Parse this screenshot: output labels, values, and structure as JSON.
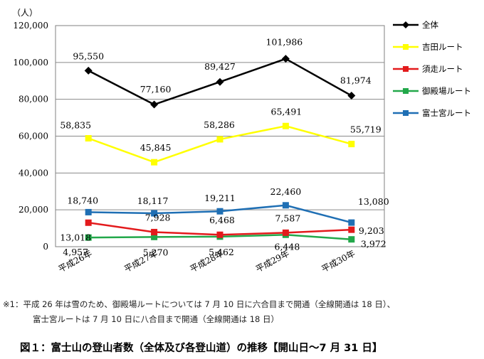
{
  "chart_data": {
    "type": "line",
    "unit_label": "（人）",
    "categories": [
      "平成26年",
      "平成27年",
      "平成28年",
      "平成29年",
      "平成30年"
    ],
    "ylim": [
      0,
      120000
    ],
    "yticks": [
      "0",
      "20,000",
      "40,000",
      "60,000",
      "80,000",
      "100,000",
      "120,000"
    ],
    "grid": true,
    "legend_position": "right",
    "series": [
      {
        "name": "全体",
        "color": "#000000",
        "marker": "diamond",
        "values": [
          95550,
          77160,
          89427,
          101986,
          81974
        ],
        "labels": [
          "95,550",
          "77,160",
          "89,427",
          "101,986",
          "81,974"
        ]
      },
      {
        "name": "吉田ルート",
        "color": "#ffff00",
        "marker": "square",
        "values": [
          58835,
          45845,
          58286,
          65491,
          55719
        ],
        "labels": [
          "58,835",
          "45,845",
          "58,286",
          "65,491",
          "55,719"
        ]
      },
      {
        "name": "須走ルート",
        "color": "#e31a1c",
        "marker": "square",
        "values": [
          13018,
          7928,
          6468,
          7587,
          9203
        ],
        "labels": [
          "13,018",
          "7,928",
          "6,468",
          "7,587",
          "9,203"
        ]
      },
      {
        "name": "御殿場ルート",
        "color": "#22a84a",
        "marker": "square",
        "values": [
          4957,
          5270,
          5462,
          6448,
          3972
        ],
        "labels": [
          "4,957",
          "5,270",
          "5,462",
          "6,448",
          "3,972"
        ]
      },
      {
        "name": "富士宮ルート",
        "color": "#1f6fb4",
        "marker": "square",
        "values": [
          18740,
          18117,
          19211,
          22460,
          13080
        ],
        "labels": [
          "18,740",
          "18,117",
          "19,211",
          "22,460",
          "13,080"
        ]
      }
    ]
  },
  "footnote": {
    "line1": "※1：平成 26 年は雪のため、御殿場ルートについては 7 月 10 日に六合目まで開通（全線開通は 18 日）、",
    "line2": "富士宮ルートは 7 月 10 日に八合目まで開通（全線開通は 18 日）"
  },
  "caption": "図１：富士山の登山者数（全体及び各登山道）の推移【開山日～7 月 31 日】"
}
